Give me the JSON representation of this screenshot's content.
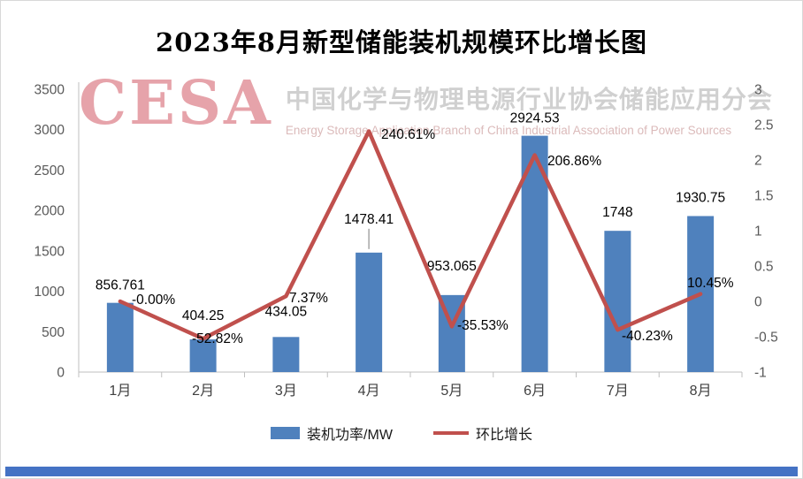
{
  "title": "2023年8月新型储能装机规模环比增长图",
  "watermark": {
    "logo": "CESA",
    "line1": "中国化学与物理电源行业协会储能应用分会",
    "line2": "Energy Storage Application Branch of China Industrial Association of Power Sources"
  },
  "accent_bar_color": "#4472C4",
  "chart_data": {
    "type": "bar+line combo",
    "title": "2023年8月新型储能装机规模环比增长图",
    "categories": [
      "1月",
      "2月",
      "3月",
      "4月",
      "5月",
      "6月",
      "7月",
      "8月"
    ],
    "series": [
      {
        "name": "装机功率/MW",
        "type": "bar",
        "axis": "left",
        "color": "#4F81BD",
        "values": [
          856.761,
          404.25,
          434.05,
          1478.41,
          953.065,
          2924.53,
          1748,
          1930.75
        ],
        "labels": [
          "856.761",
          "404.25",
          "434.05",
          "1478.41",
          "953.065",
          "2924.53",
          "1748",
          "1930.75"
        ]
      },
      {
        "name": "环比增长",
        "type": "line",
        "axis": "right",
        "color": "#C0504D",
        "values": [
          0.0,
          -0.5282,
          0.0737,
          2.4061,
          -0.3553,
          2.0686,
          -0.4023,
          0.1045
        ],
        "labels": [
          "-0.00%",
          "-52.82%",
          "7.37%",
          "240.61%",
          "-35.53%",
          "206.86%",
          "-40.23%",
          "10.45%"
        ]
      }
    ],
    "left_axis": {
      "min": 0,
      "max": 3500,
      "step": 500,
      "ticks": [
        "0",
        "500",
        "1000",
        "1500",
        "2000",
        "2500",
        "3000",
        "3500"
      ]
    },
    "right_axis": {
      "min": -1,
      "max": 3,
      "step": 0.5,
      "ticks": [
        "-1",
        "-0.5",
        "0",
        "0.5",
        "1",
        "1.5",
        "2",
        "2.5",
        "3"
      ]
    },
    "grid": "off",
    "legend_position": "bottom",
    "legend": [
      {
        "label": "装机功率/MW",
        "shape": "rect",
        "color": "#4F81BD"
      },
      {
        "label": "环比增长",
        "shape": "line",
        "color": "#C0504D"
      }
    ]
  }
}
